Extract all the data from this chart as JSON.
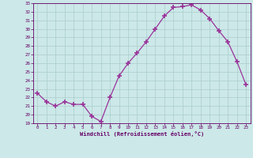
{
  "x": [
    0,
    1,
    2,
    3,
    4,
    5,
    6,
    7,
    8,
    9,
    10,
    11,
    12,
    13,
    14,
    15,
    16,
    17,
    18,
    19,
    20,
    21,
    22,
    23
  ],
  "y": [
    22.5,
    21.5,
    21.0,
    21.5,
    21.2,
    21.2,
    19.8,
    19.2,
    22.0,
    24.5,
    26.0,
    27.2,
    28.5,
    30.0,
    31.5,
    32.5,
    32.6,
    32.8,
    32.2,
    31.2,
    29.8,
    28.5,
    26.2,
    23.5
  ],
  "xlabel": "Windchill (Refroidissement éolien,°C)",
  "ylim": [
    19,
    33
  ],
  "xlim": [
    -0.5,
    23.5
  ],
  "yticks": [
    19,
    20,
    21,
    22,
    23,
    24,
    25,
    26,
    27,
    28,
    29,
    30,
    31,
    32,
    33
  ],
  "xticks": [
    0,
    1,
    2,
    3,
    4,
    5,
    6,
    7,
    8,
    9,
    10,
    11,
    12,
    13,
    14,
    15,
    16,
    17,
    18,
    19,
    20,
    21,
    22,
    23
  ],
  "line_color": "#993399",
  "marker": "+",
  "marker_size": 4,
  "bg_color": "#cce8e8",
  "grid_color": "#aacccc",
  "tick_color": "#660066",
  "label_color": "#660066"
}
